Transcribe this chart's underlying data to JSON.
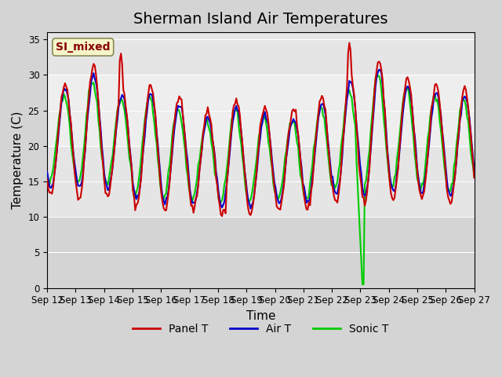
{
  "title": "Sherman Island Air Temperatures",
  "xlabel": "Time",
  "ylabel": "Temperature (C)",
  "ylim": [
    0,
    36
  ],
  "yticks": [
    0,
    5,
    10,
    15,
    20,
    25,
    30,
    35
  ],
  "x_labels": [
    "Sep 12",
    "Sep 13",
    "Sep 14",
    "Sep 15",
    "Sep 16",
    "Sep 17",
    "Sep 18",
    "Sep 19",
    "Sep 20",
    "Sep 21",
    "Sep 22",
    "Sep 23",
    "Sep 24",
    "Sep 25",
    "Sep 26",
    "Sep 27"
  ],
  "bg_color": "#e8e8e8",
  "plot_bg_color": "#f0f0f0",
  "band_color": "#d0d0d0",
  "legend_labels": [
    "Panel T",
    "Air T",
    "Sonic T"
  ],
  "legend_colors": [
    "#cc0000",
    "#0000cc",
    "#00cc00"
  ],
  "annotation_text": "SI_mixed",
  "annotation_color": "#880000",
  "annotation_bg": "#f5f5c8",
  "title_fontsize": 14,
  "axis_fontsize": 11,
  "tick_fontsize": 8.5,
  "line_width": 1.5
}
